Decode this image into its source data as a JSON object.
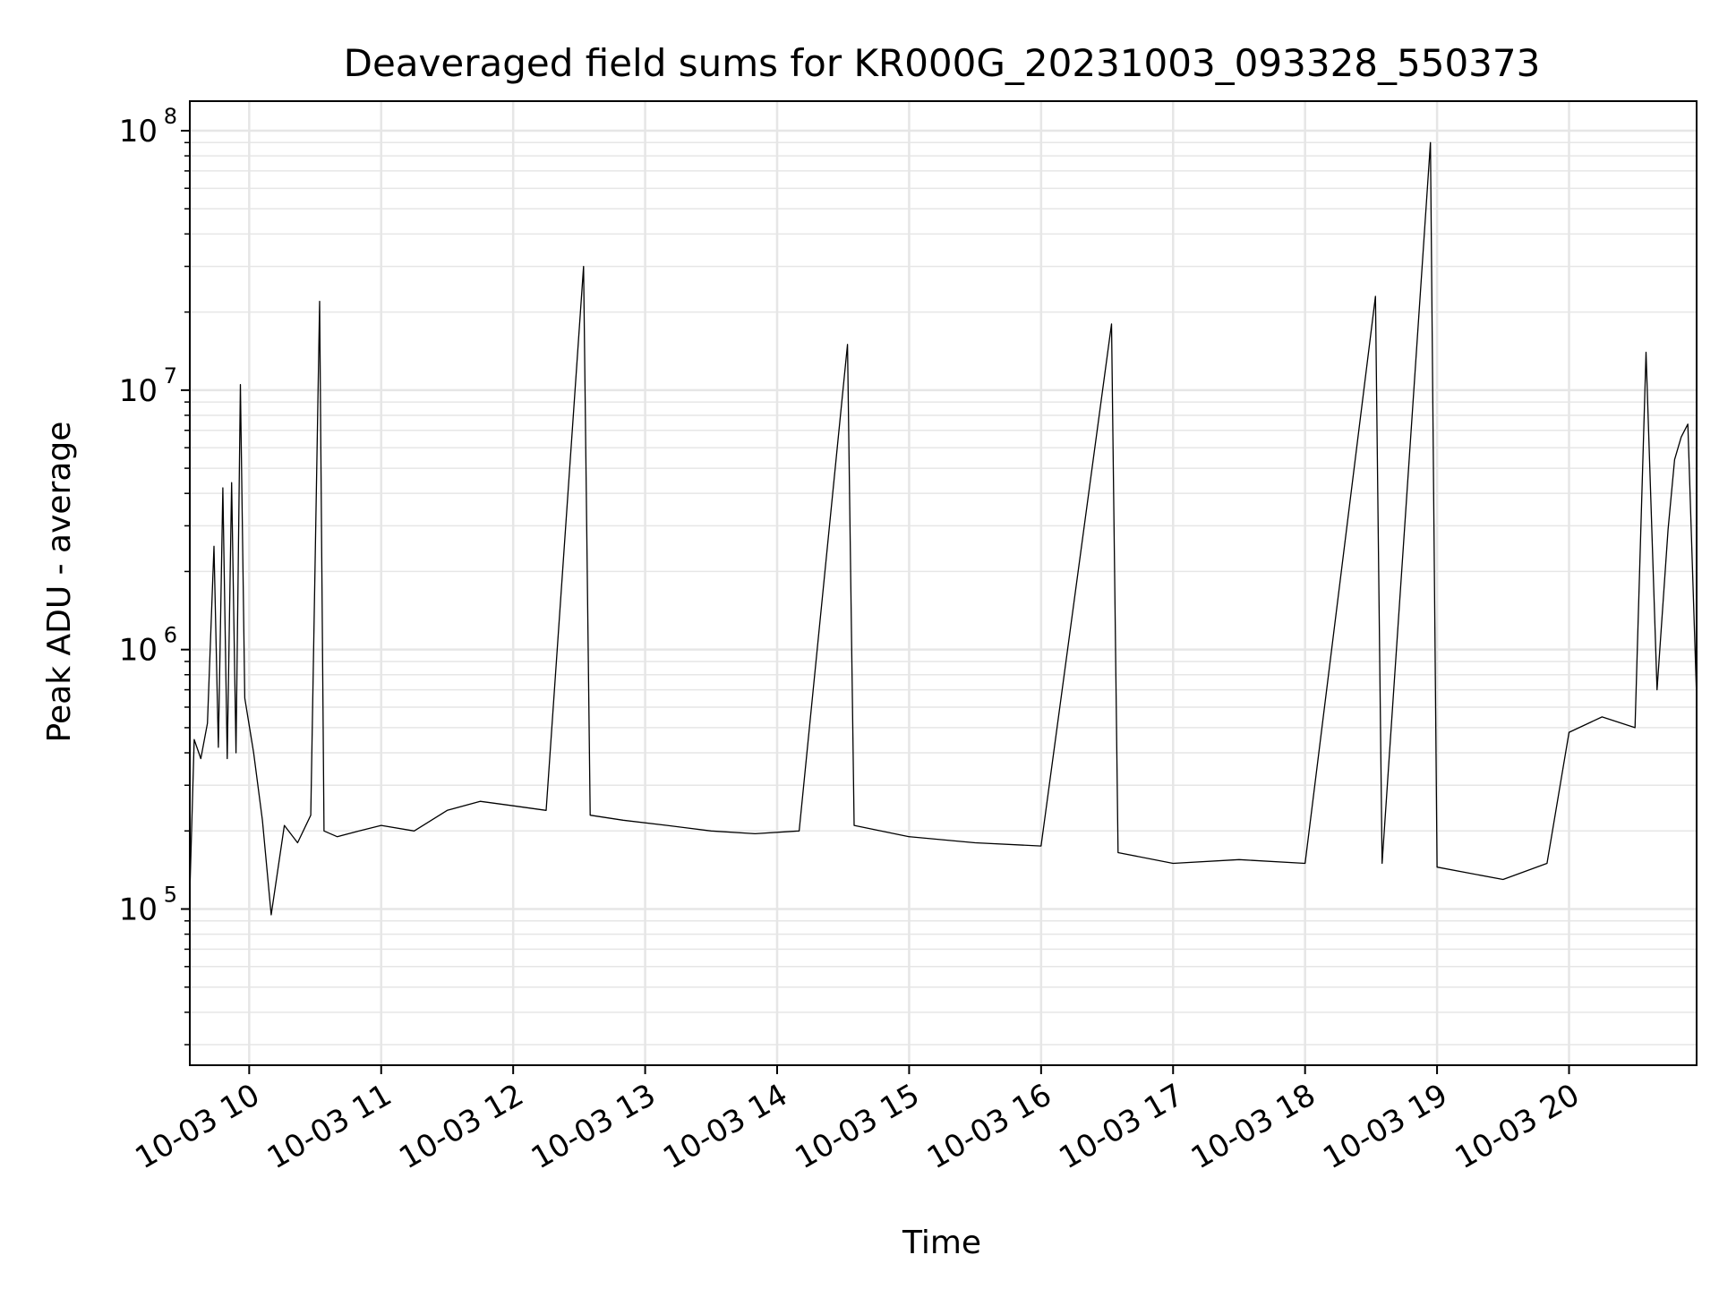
{
  "chart_data": {
    "type": "line",
    "title": "Deaveraged field sums for KR000G_20231003_093328_550373",
    "xlabel": "Time",
    "ylabel": "Peak ADU - average",
    "yscale": "log",
    "grid": true,
    "line_color": "#000000",
    "grid_color": "#e6e6e6",
    "x_range": [
      "2023-10-03 09:33",
      "2023-10-03 20:58"
    ],
    "ylim": [
      25000,
      130000000
    ],
    "x_ticks": [
      {
        "value": "2023-10-03 10:00",
        "label": "10-03 10"
      },
      {
        "value": "2023-10-03 11:00",
        "label": "10-03 11"
      },
      {
        "value": "2023-10-03 12:00",
        "label": "10-03 12"
      },
      {
        "value": "2023-10-03 13:00",
        "label": "10-03 13"
      },
      {
        "value": "2023-10-03 14:00",
        "label": "10-03 14"
      },
      {
        "value": "2023-10-03 15:00",
        "label": "10-03 15"
      },
      {
        "value": "2023-10-03 16:00",
        "label": "10-03 16"
      },
      {
        "value": "2023-10-03 17:00",
        "label": "10-03 17"
      },
      {
        "value": "2023-10-03 18:00",
        "label": "10-03 18"
      },
      {
        "value": "2023-10-03 19:00",
        "label": "10-03 19"
      },
      {
        "value": "2023-10-03 20:00",
        "label": "10-03 20"
      }
    ],
    "y_ticks": [
      {
        "value": 100000,
        "base": "10",
        "exp": "5"
      },
      {
        "value": 1000000,
        "base": "10",
        "exp": "6"
      },
      {
        "value": 10000000,
        "base": "10",
        "exp": "7"
      },
      {
        "value": 100000000,
        "base": "10",
        "exp": "8"
      }
    ],
    "series": [
      {
        "points": [
          [
            "2023-10-03 09:33",
            115000
          ],
          [
            "2023-10-03 09:35",
            450000
          ],
          [
            "2023-10-03 09:38",
            380000
          ],
          [
            "2023-10-03 09:41",
            520000
          ],
          [
            "2023-10-03 09:44",
            2500000
          ],
          [
            "2023-10-03 09:46",
            420000
          ],
          [
            "2023-10-03 09:48",
            4200000
          ],
          [
            "2023-10-03 09:50",
            380000
          ],
          [
            "2023-10-03 09:52",
            4400000
          ],
          [
            "2023-10-03 09:54",
            400000
          ],
          [
            "2023-10-03 09:56",
            10500000
          ],
          [
            "2023-10-03 09:58",
            650000
          ],
          [
            "2023-10-03 10:02",
            400000
          ],
          [
            "2023-10-03 10:06",
            220000
          ],
          [
            "2023-10-03 10:10",
            95000
          ],
          [
            "2023-10-03 10:16",
            210000
          ],
          [
            "2023-10-03 10:22",
            180000
          ],
          [
            "2023-10-03 10:28",
            230000
          ],
          [
            "2023-10-03 10:32",
            22000000
          ],
          [
            "2023-10-03 10:34",
            200000
          ],
          [
            "2023-10-03 10:40",
            190000
          ],
          [
            "2023-10-03 10:50",
            200000
          ],
          [
            "2023-10-03 11:00",
            210000
          ],
          [
            "2023-10-03 11:15",
            200000
          ],
          [
            "2023-10-03 11:30",
            240000
          ],
          [
            "2023-10-03 11:45",
            260000
          ],
          [
            "2023-10-03 12:00",
            250000
          ],
          [
            "2023-10-03 12:15",
            240000
          ],
          [
            "2023-10-03 12:32",
            30000000
          ],
          [
            "2023-10-03 12:35",
            230000
          ],
          [
            "2023-10-03 12:50",
            220000
          ],
          [
            "2023-10-03 13:10",
            210000
          ],
          [
            "2023-10-03 13:30",
            200000
          ],
          [
            "2023-10-03 13:50",
            195000
          ],
          [
            "2023-10-03 14:10",
            200000
          ],
          [
            "2023-10-03 14:32",
            15000000
          ],
          [
            "2023-10-03 14:35",
            210000
          ],
          [
            "2023-10-03 15:00",
            190000
          ],
          [
            "2023-10-03 15:30",
            180000
          ],
          [
            "2023-10-03 16:00",
            175000
          ],
          [
            "2023-10-03 16:32",
            18000000
          ],
          [
            "2023-10-03 16:35",
            165000
          ],
          [
            "2023-10-03 17:00",
            150000
          ],
          [
            "2023-10-03 17:30",
            155000
          ],
          [
            "2023-10-03 18:00",
            150000
          ],
          [
            "2023-10-03 18:32",
            23000000
          ],
          [
            "2023-10-03 18:35",
            150000
          ],
          [
            "2023-10-03 18:57",
            90000000
          ],
          [
            "2023-10-03 19:00",
            145000
          ],
          [
            "2023-10-03 19:30",
            130000
          ],
          [
            "2023-10-03 19:50",
            150000
          ],
          [
            "2023-10-03 20:00",
            480000
          ],
          [
            "2023-10-03 20:15",
            550000
          ],
          [
            "2023-10-03 20:30",
            500000
          ],
          [
            "2023-10-03 20:35",
            14000000
          ],
          [
            "2023-10-03 20:40",
            700000
          ],
          [
            "2023-10-03 20:45",
            2900000
          ],
          [
            "2023-10-03 20:48",
            5400000
          ],
          [
            "2023-10-03 20:51",
            6600000
          ],
          [
            "2023-10-03 20:54",
            7400000
          ],
          [
            "2023-10-03 20:58",
            650000
          ]
        ]
      }
    ]
  }
}
